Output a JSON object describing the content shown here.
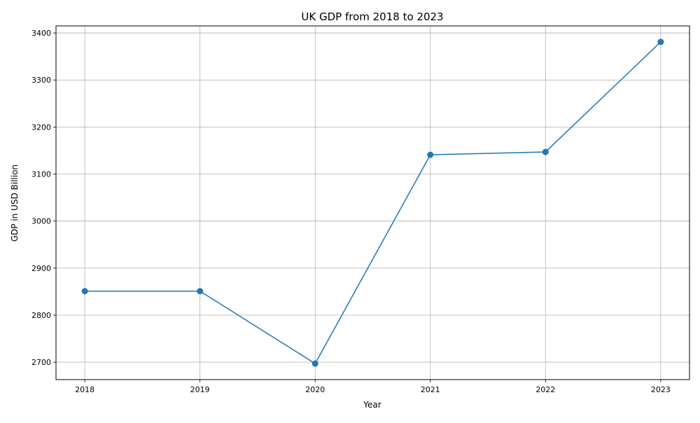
{
  "chart_data": {
    "type": "line",
    "title": "UK GDP from 2018 to 2023",
    "xlabel": "Year",
    "ylabel": "GDP in USD Billion",
    "x": [
      2018,
      2019,
      2020,
      2021,
      2022,
      2023
    ],
    "series": [
      {
        "values": [
          2851,
          2851,
          2697,
          3141,
          3147,
          3381
        ]
      }
    ],
    "xticks": [
      "2018",
      "2019",
      "2020",
      "2021",
      "2022",
      "2023"
    ],
    "yticks": [
      2700,
      2800,
      2900,
      3000,
      3100,
      3200,
      3300,
      3400
    ],
    "xlim": [
      2017.75,
      2023.25
    ],
    "ylim": [
      2663,
      3415
    ],
    "grid": true,
    "marker": "circle",
    "line_color": "#1f77b4",
    "grid_color": "#b0b0b0"
  }
}
